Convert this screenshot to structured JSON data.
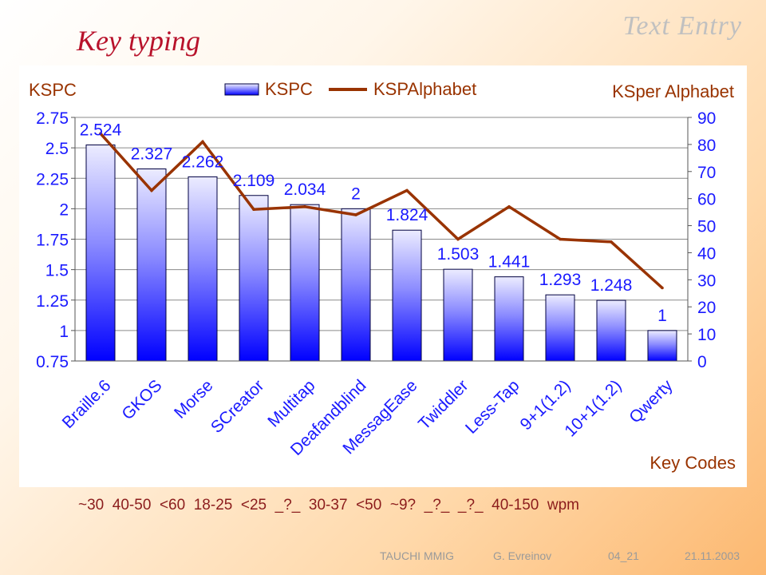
{
  "slide": {
    "section_title": "Text Entry",
    "title": "Key typing",
    "wpm_text": "~30  40-50  <60  18-25  <25  _?_  30-37  <50  ~9?  _?_  _?_  40-150  wpm",
    "footer": {
      "org": "TAUCHI MMIG",
      "author": "G. Evreinov",
      "slide_no": "04_21",
      "date": "21.11.2003"
    }
  },
  "chart_data": {
    "type": "bar",
    "left_axis_label": "KSPC",
    "right_axis_label": "KSper Alphabet",
    "x_axis_label": "Key Codes",
    "categories": [
      "Braille.6",
      "GKOS",
      "Morse",
      "SCreator",
      "Multitap",
      "Deafandblind",
      "MessagEase",
      "Twiddler",
      "Less-Tap",
      "9+1(1.2)",
      "10+1(1.2)",
      "Qwerty"
    ],
    "series": [
      {
        "name": "KSPC",
        "type": "bar",
        "axis": "left",
        "color": "#1a1aff",
        "values": [
          2.524,
          2.327,
          2.262,
          2.109,
          2.034,
          2,
          1.824,
          1.503,
          1.441,
          1.293,
          1.248,
          1
        ],
        "labels": [
          "2.524",
          "2.327",
          "2.262",
          "2.109",
          "2.034",
          "2",
          "1.824",
          "1.503",
          "1.441",
          "1.293",
          "1.248",
          "1"
        ]
      },
      {
        "name": "KSPAlphabet",
        "type": "line",
        "axis": "right",
        "color": "#993300",
        "values": [
          84,
          63,
          81,
          56,
          57,
          54,
          63,
          45,
          57,
          45,
          44,
          27
        ]
      }
    ],
    "left_axis": {
      "min": 0.75,
      "max": 2.75,
      "ticks": [
        "0.75",
        "1",
        "1.25",
        "1.5",
        "1.75",
        "2",
        "2.25",
        "2.5",
        "2.75"
      ]
    },
    "right_axis": {
      "min": 0,
      "max": 90,
      "ticks": [
        "0",
        "10",
        "20",
        "30",
        "40",
        "50",
        "60",
        "70",
        "80",
        "90"
      ]
    },
    "grid": true,
    "legend_position": "top"
  }
}
